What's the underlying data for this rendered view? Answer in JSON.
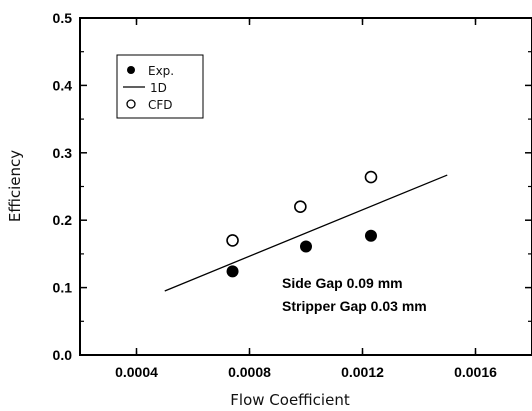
{
  "chart_data": {
    "type": "scatter",
    "xlabel": "Flow Coefficient",
    "ylabel": "Efficiency",
    "xlim": [
      0.0002,
      0.0018
    ],
    "ylim": [
      0.0,
      0.5
    ],
    "x_ticks": [
      "0.0004",
      "0.0008",
      "0.0012",
      "0.0016"
    ],
    "y_ticks": [
      "0.0",
      "0.1",
      "0.2",
      "0.3",
      "0.4",
      "0.5"
    ],
    "x_tick_values": [
      0.0004,
      0.0008,
      0.0012,
      0.0016
    ],
    "y_tick_values": [
      0.0,
      0.1,
      0.2,
      0.3,
      0.4,
      0.5
    ],
    "grid": false,
    "legend_position": "top-left",
    "series": [
      {
        "name": "Exp.",
        "kind": "filled-circle",
        "x": [
          0.00074,
          0.001,
          0.00123
        ],
        "y": [
          0.124,
          0.161,
          0.177
        ]
      },
      {
        "name": "1D",
        "kind": "line",
        "x": [
          0.0005,
          0.0015
        ],
        "y": [
          0.095,
          0.267
        ]
      },
      {
        "name": "CFD",
        "kind": "open-circle",
        "x": [
          0.00074,
          0.00098,
          0.00123
        ],
        "y": [
          0.17,
          0.22,
          0.264
        ]
      }
    ],
    "annotations": [
      "Side Gap 0.09 mm",
      "Stripper Gap 0.03 mm"
    ]
  }
}
